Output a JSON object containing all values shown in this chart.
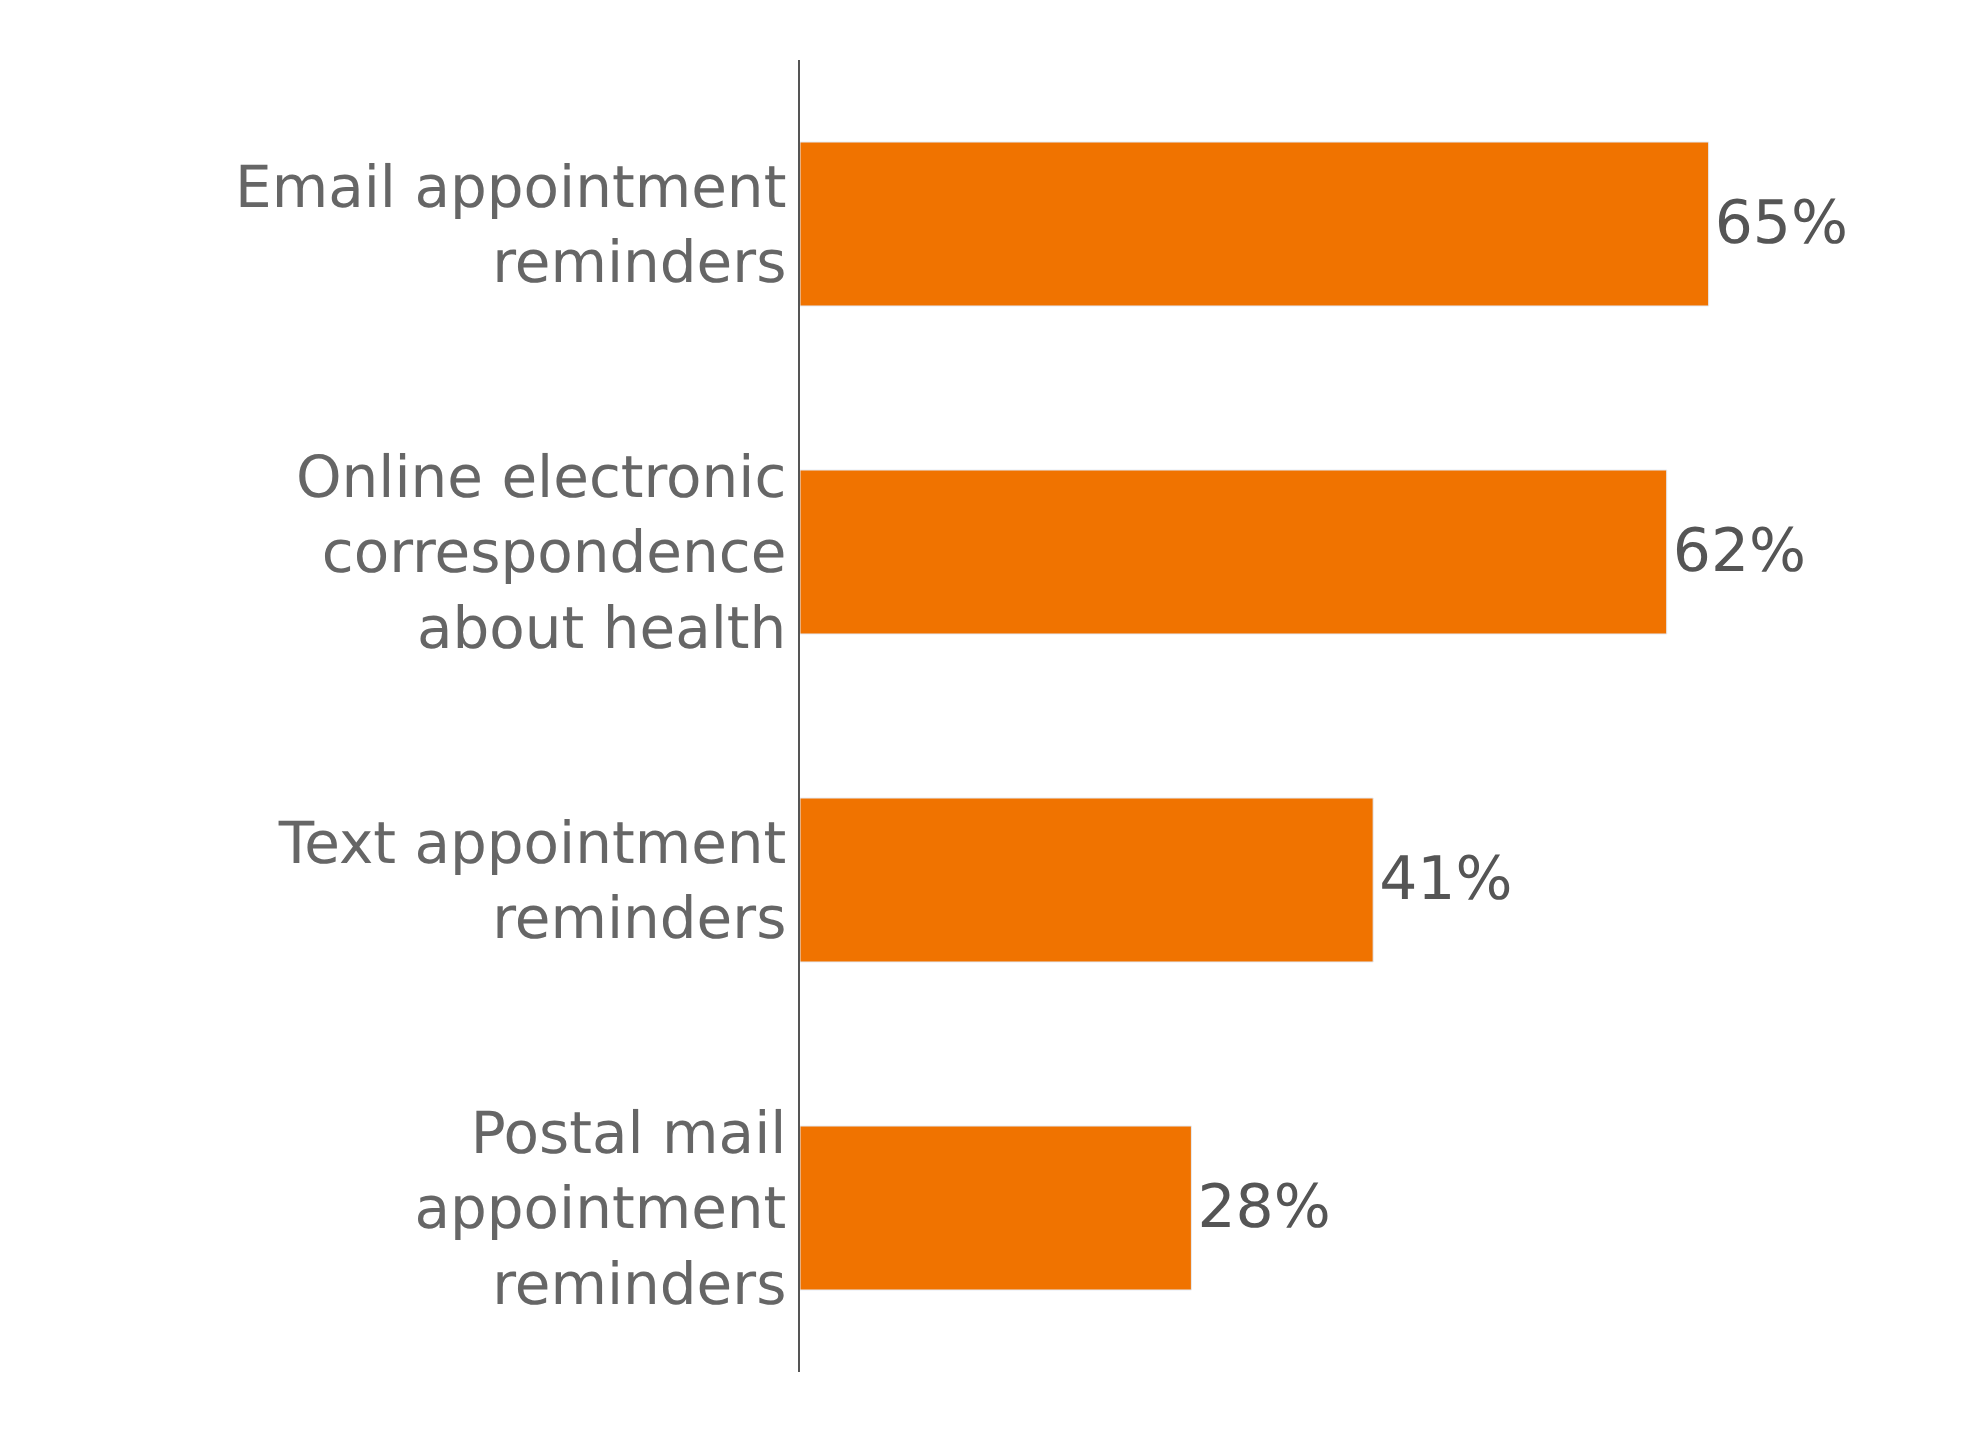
{
  "chart_data": {
    "type": "bar",
    "orientation": "horizontal",
    "categories": [
      "Email appointment reminders",
      "Online electronic correspondence about health",
      "Text appointment reminders",
      "Postal mail appointment reminders"
    ],
    "values": [
      65,
      62,
      41,
      28
    ],
    "value_labels": [
      "65%",
      "62%",
      "41%",
      "28%"
    ],
    "color": "#f07300"
  }
}
